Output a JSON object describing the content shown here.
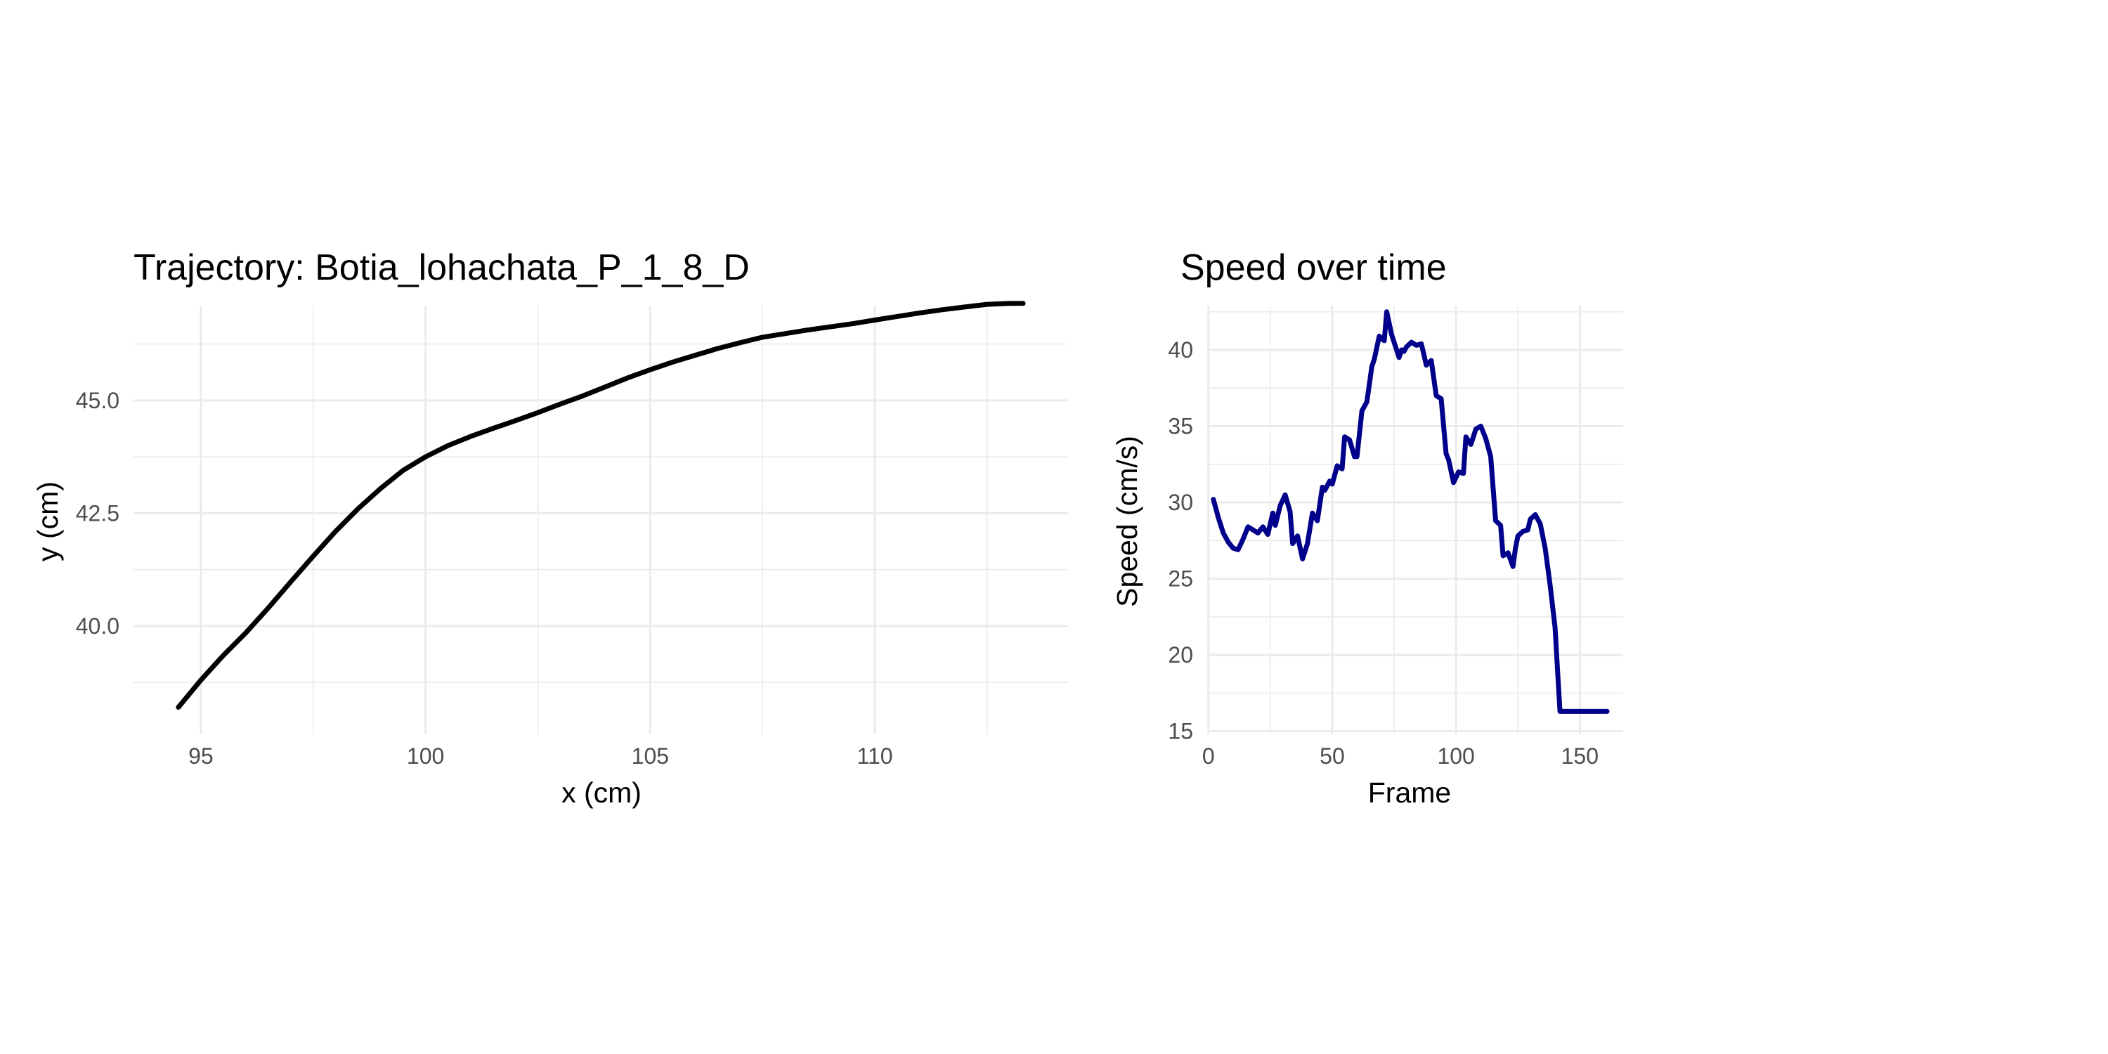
{
  "chart_data": [
    {
      "id": "trajectory",
      "type": "line",
      "title": "Trajectory: Botia_lohachata_P_1_8_D",
      "xlabel": "x (cm)",
      "ylabel": "y (cm)",
      "xlim": [
        93.5,
        114.3
      ],
      "ylim": [
        37.6,
        47.1
      ],
      "x_major_ticks": [
        95,
        100,
        105,
        110
      ],
      "x_minor_ticks": [
        97.5,
        102.5,
        107.5,
        112.5
      ],
      "y_major_ticks": [
        40.0,
        42.5,
        45.0
      ],
      "y_minor_ticks": [
        38.75,
        41.25,
        43.75,
        46.25
      ],
      "x_tick_labels": [
        "95",
        "100",
        "105",
        "110"
      ],
      "y_tick_labels": [
        "40.0",
        "42.5",
        "45.0"
      ],
      "grid": true,
      "color": "#000000",
      "series": [
        {
          "x": [
            94.5,
            95.0,
            95.5,
            96.0,
            96.5,
            97.0,
            97.5,
            98.0,
            98.5,
            99.0,
            99.5,
            100.0,
            100.5,
            101.0,
            101.5,
            102.0,
            102.5,
            103.0,
            103.5,
            104.0,
            104.5,
            105.0,
            105.5,
            106.0,
            106.5,
            107.0,
            107.5,
            108.0,
            108.5,
            109.0,
            109.5,
            110.0,
            110.5,
            111.0,
            111.5,
            112.0,
            112.5,
            113.0,
            113.3
          ],
          "y": [
            38.2,
            38.8,
            39.35,
            39.85,
            40.4,
            40.98,
            41.55,
            42.1,
            42.6,
            43.05,
            43.45,
            43.75,
            44.0,
            44.2,
            44.38,
            44.55,
            44.73,
            44.92,
            45.1,
            45.3,
            45.5,
            45.68,
            45.85,
            46.0,
            46.15,
            46.28,
            46.4,
            46.48,
            46.56,
            46.63,
            46.7,
            46.78,
            46.86,
            46.94,
            47.01,
            47.07,
            47.13,
            47.15,
            47.15
          ]
        }
      ]
    },
    {
      "id": "speed",
      "type": "line",
      "title": "Speed over time",
      "xlabel": "Frame",
      "ylabel": "Speed (cm/s)",
      "xlim": [
        -0.5,
        167.5
      ],
      "ylim": [
        14.8,
        42.9
      ],
      "x_major_ticks": [
        0,
        50,
        100,
        150
      ],
      "x_minor_ticks": [
        25,
        75,
        125
      ],
      "y_major_ticks": [
        15,
        20,
        25,
        30,
        35,
        40
      ],
      "y_minor_ticks": [
        17.5,
        22.5,
        27.5,
        32.5,
        37.5,
        42.5
      ],
      "x_tick_labels": [
        "0",
        "50",
        "100",
        "150"
      ],
      "y_tick_labels": [
        "15",
        "20",
        "25",
        "30",
        "35",
        "40"
      ],
      "grid": true,
      "color": "#00008B",
      "series": [
        {
          "x": [
            2,
            4,
            6,
            8,
            10,
            12,
            14,
            16,
            18,
            20,
            22,
            24,
            26,
            27,
            29,
            31,
            33,
            34,
            36,
            38,
            40,
            42,
            44,
            46,
            47,
            49,
            50,
            52,
            54,
            55,
            57,
            59,
            60,
            62,
            64,
            66,
            67,
            69,
            71,
            72,
            74,
            75,
            77,
            78,
            79,
            80,
            82,
            84,
            86,
            88,
            90,
            92,
            94,
            96,
            97,
            99,
            101,
            103,
            104,
            106,
            108,
            110,
            112,
            114,
            116,
            118,
            119,
            121,
            123,
            124,
            125,
            127,
            129,
            130,
            132,
            134,
            136,
            138,
            140,
            141,
            142,
            144,
            146,
            148,
            149,
            151,
            153,
            155,
            157,
            159,
            161
          ],
          "y": [
            30.2,
            29.0,
            28.0,
            27.4,
            27.0,
            26.9,
            27.6,
            28.4,
            28.2,
            28.0,
            28.4,
            27.9,
            29.3,
            28.5,
            29.8,
            30.5,
            29.4,
            27.3,
            27.8,
            26.3,
            27.3,
            29.3,
            28.8,
            31.0,
            30.8,
            31.4,
            31.2,
            32.4,
            32.2,
            34.3,
            34.1,
            33.0,
            33.0,
            36.0,
            36.6,
            38.9,
            39.4,
            40.9,
            40.6,
            42.5,
            41.0,
            40.5,
            39.5,
            40.0,
            39.9,
            40.2,
            40.5,
            40.3,
            40.4,
            39.0,
            39.3,
            37.0,
            36.8,
            33.2,
            32.8,
            31.3,
            32.0,
            31.9,
            34.3,
            33.8,
            34.8,
            35.0,
            34.2,
            33.0,
            28.8,
            28.5,
            26.5,
            26.7,
            25.8,
            27.0,
            27.8,
            28.1,
            28.2,
            28.9,
            29.2,
            28.6,
            27.0,
            24.6,
            21.8,
            19.0,
            16.3,
            16.3,
            16.3,
            16.3,
            16.3,
            16.3,
            16.3,
            16.3,
            16.3,
            16.3,
            16.3
          ]
        }
      ]
    }
  ]
}
